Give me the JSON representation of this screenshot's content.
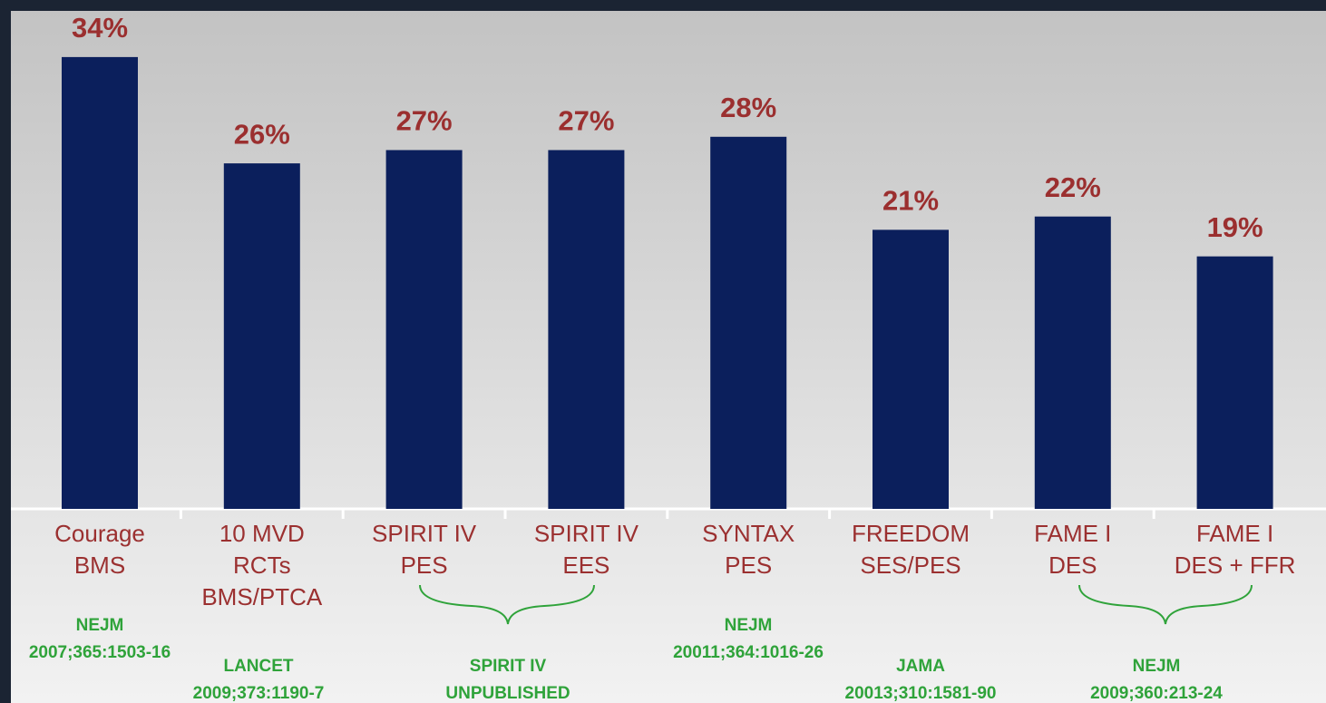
{
  "chart_data": {
    "type": "bar",
    "categories": [
      [
        "Courage",
        "BMS"
      ],
      [
        "10 MVD",
        "RCTs",
        "BMS/PTCA"
      ],
      [
        "SPIRIT IV",
        "PES"
      ],
      [
        "SPIRIT IV",
        "EES"
      ],
      [
        "SYNTAX",
        "PES"
      ],
      [
        "FREEDOM",
        "SES/PES"
      ],
      [
        "FAME I",
        "DES"
      ],
      [
        "FAME I",
        "DES + FFR"
      ]
    ],
    "values": [
      34,
      26,
      27,
      27,
      28,
      21,
      22,
      19
    ],
    "value_labels": [
      "34%",
      "26%",
      "27%",
      "27%",
      "28%",
      "21%",
      "22%",
      "19%"
    ],
    "color": "#0b1f5c",
    "annotations": [
      [
        "NEJM",
        "2007;365:1503-16"
      ],
      [
        "LANCET",
        "2009;373:1190-7"
      ],
      [
        "SPIRIT IV",
        "UNPUBLISHED"
      ],
      [
        "NEJM",
        "20011;364:1016-26"
      ],
      [
        "JAMA",
        "20013;310:1581-90"
      ],
      [
        "NEJM",
        "2009;360:213-24"
      ]
    ]
  }
}
